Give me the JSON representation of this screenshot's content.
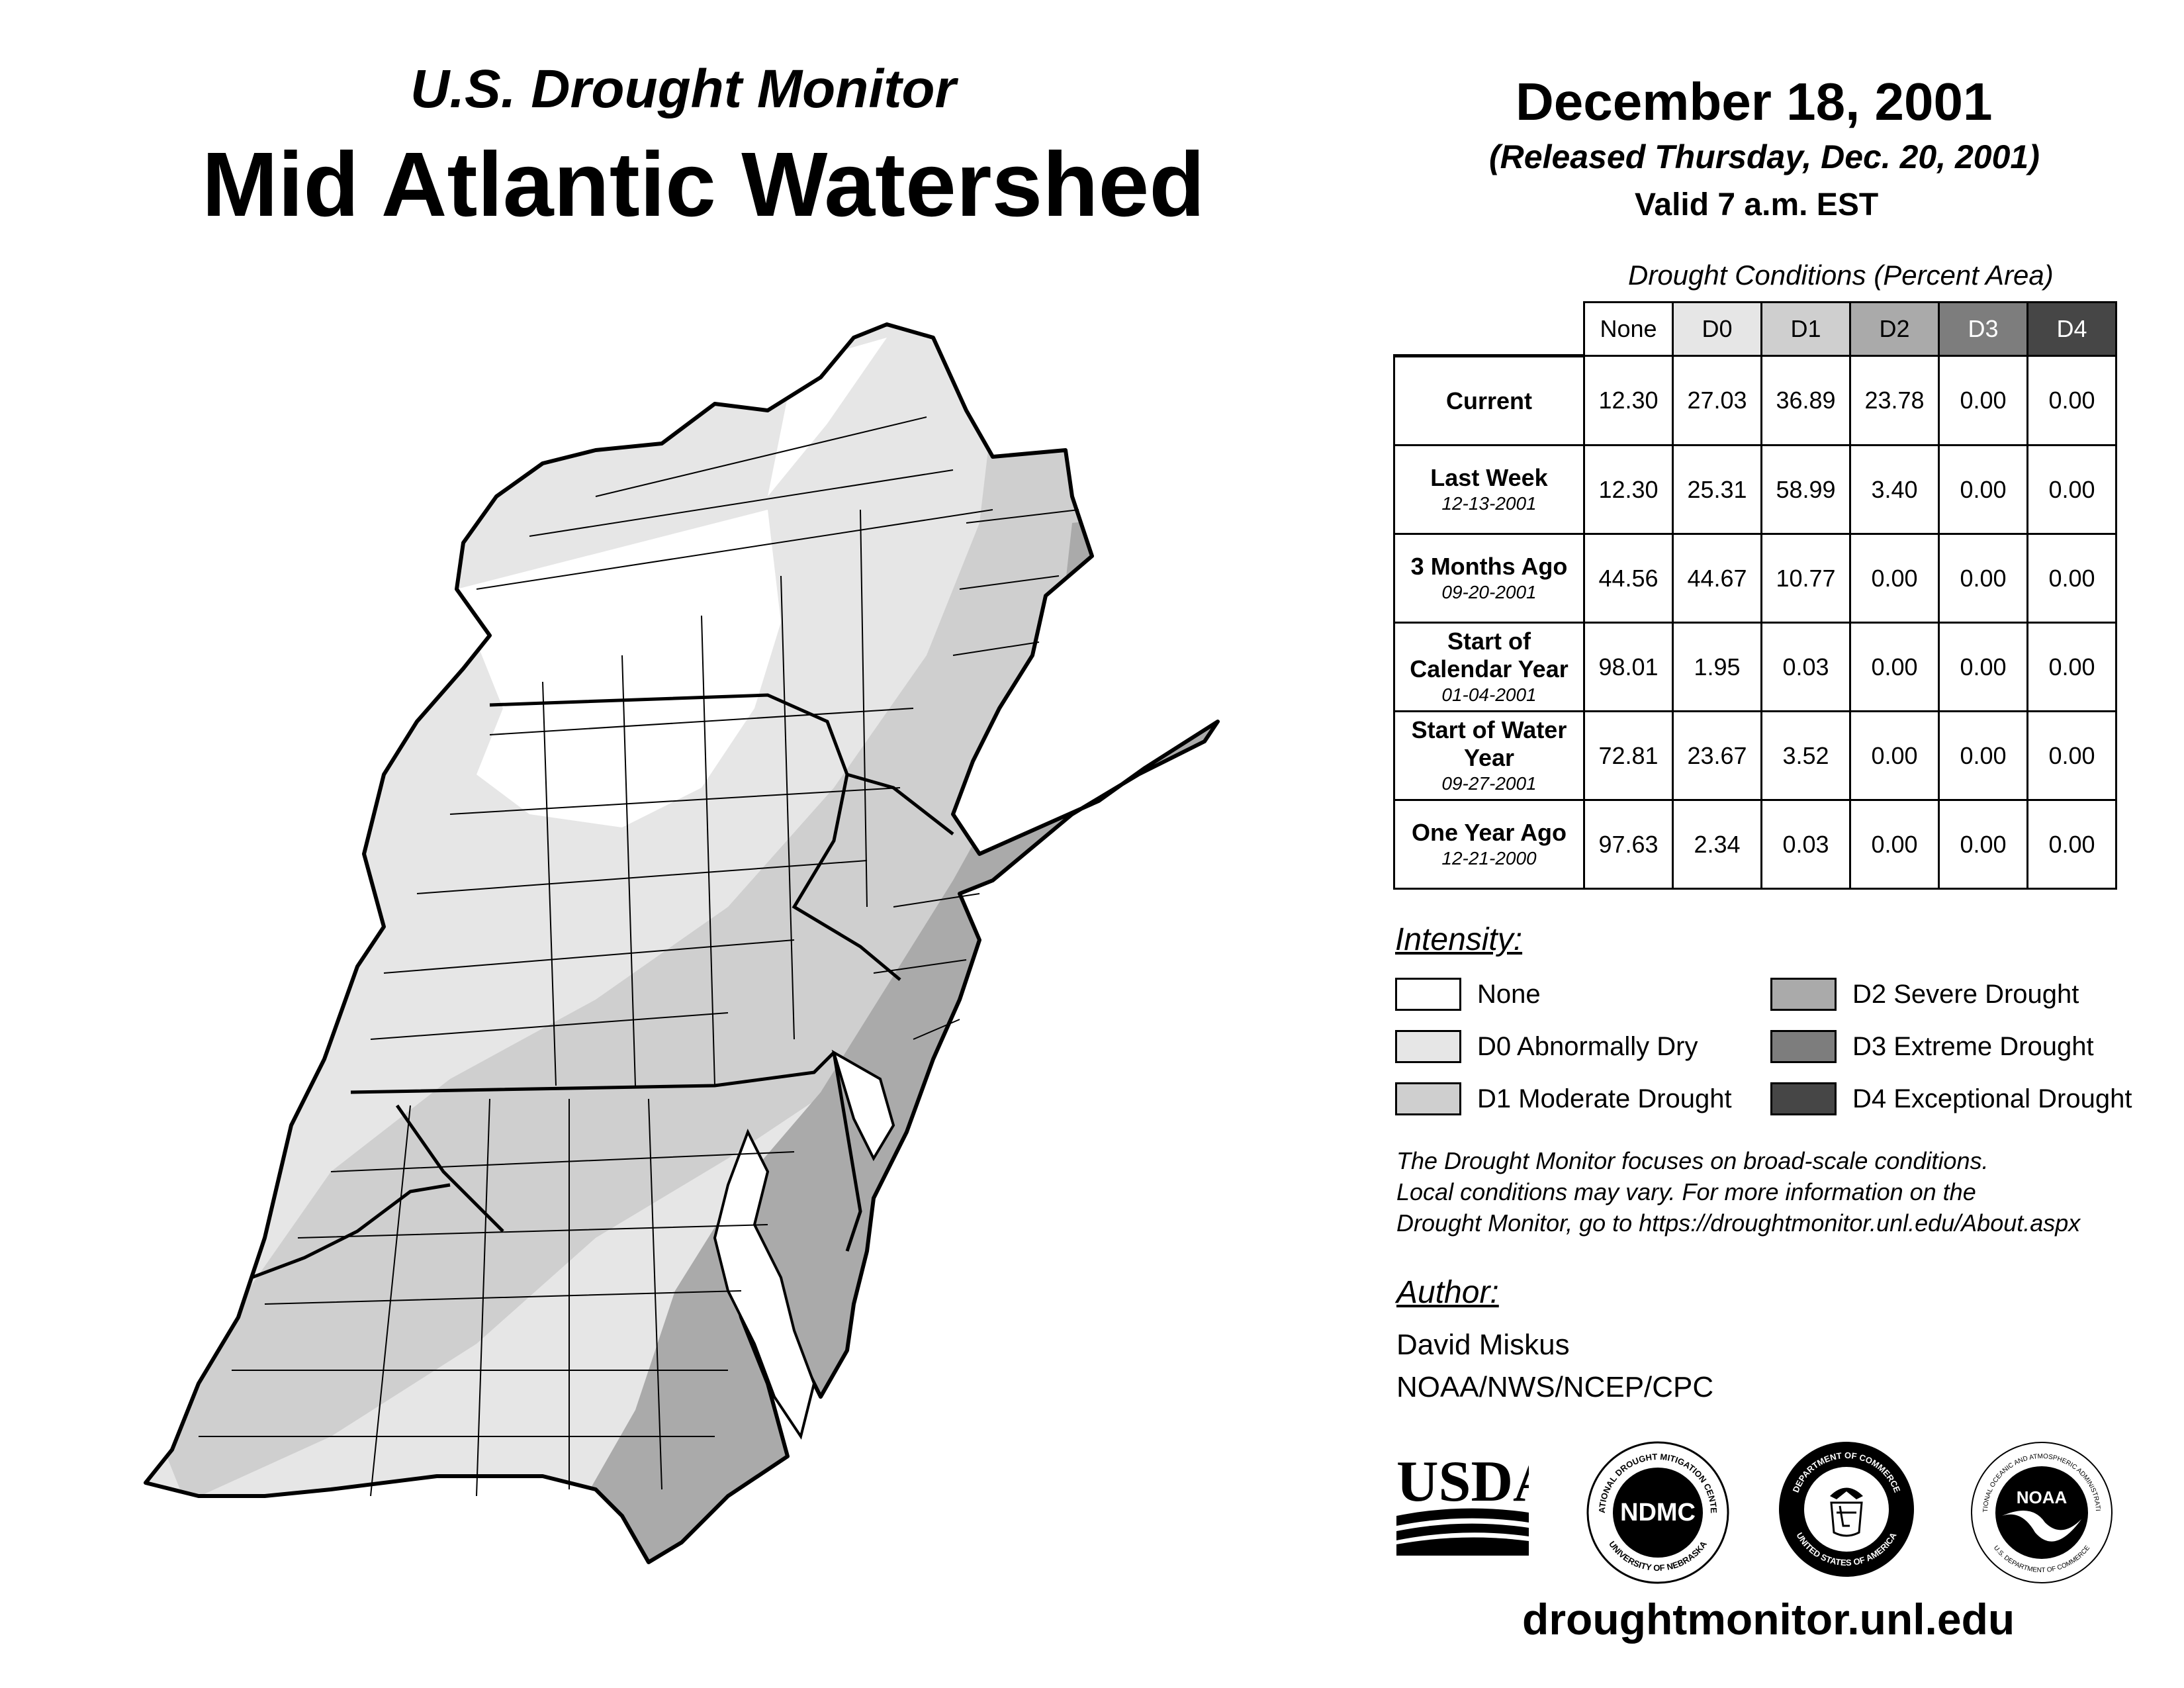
{
  "header": {
    "subtitle": "U.S. Drought Monitor",
    "title": "Mid Atlantic Watershed",
    "date": "December 18, 2001",
    "released": "(Released Thursday, Dec. 20, 2001)",
    "valid": "Valid 7 a.m. EST"
  },
  "table": {
    "caption": "Drought Conditions (Percent Area)",
    "columns": [
      {
        "label": "None",
        "color": "#ffffff"
      },
      {
        "label": "D0",
        "color": "#e6e6e6"
      },
      {
        "label": "D1",
        "color": "#cfcfcf"
      },
      {
        "label": "D2",
        "color": "#aaaaaa"
      },
      {
        "label": "D3",
        "color": "#7d7d7d"
      },
      {
        "label": "D4",
        "color": "#464646"
      }
    ],
    "rows": [
      {
        "label": "Current",
        "date": "",
        "values": [
          "12.30",
          "27.03",
          "36.89",
          "23.78",
          "0.00",
          "0.00"
        ]
      },
      {
        "label": "Last Week",
        "date": "12-13-2001",
        "values": [
          "12.30",
          "25.31",
          "58.99",
          "3.40",
          "0.00",
          "0.00"
        ]
      },
      {
        "label": "3 Months Ago",
        "date": "09-20-2001",
        "values": [
          "44.56",
          "44.67",
          "10.77",
          "0.00",
          "0.00",
          "0.00"
        ]
      },
      {
        "label": "Start of Calendar Year",
        "date": "01-04-2001",
        "values": [
          "98.01",
          "1.95",
          "0.03",
          "0.00",
          "0.00",
          "0.00"
        ]
      },
      {
        "label": "Start of Water Year",
        "date": "09-27-2001",
        "values": [
          "72.81",
          "23.67",
          "3.52",
          "0.00",
          "0.00",
          "0.00"
        ]
      },
      {
        "label": "One Year Ago",
        "date": "12-21-2000",
        "values": [
          "97.63",
          "2.34",
          "0.03",
          "0.00",
          "0.00",
          "0.00"
        ]
      }
    ]
  },
  "legend": {
    "heading": "Intensity:",
    "items": [
      {
        "label": "None",
        "color": "#ffffff"
      },
      {
        "label": "D0 Abnormally Dry",
        "color": "#e6e6e6"
      },
      {
        "label": "D1 Moderate Drought",
        "color": "#cfcfcf"
      },
      {
        "label": "D2 Severe Drought",
        "color": "#aaaaaa"
      },
      {
        "label": "D3 Extreme Drought",
        "color": "#7d7d7d"
      },
      {
        "label": "D4 Exceptional Drought",
        "color": "#464646"
      }
    ]
  },
  "note": {
    "line1": "The Drought Monitor focuses on broad-scale conditions.",
    "line2": "Local conditions may vary. For more information on the",
    "line3": "Drought Monitor, go to https://droughtmonitor.unl.edu/About.aspx"
  },
  "author": {
    "heading": "Author:",
    "name": "David Miskus",
    "org": "NOAA/NWS/NCEP/CPC"
  },
  "logos": {
    "usda": "USDA",
    "ndmc": "NDMC",
    "ndmc_ring_top": "NATIONAL DROUGHT MITIGATION CENTER",
    "ndmc_ring_bottom": "UNIVERSITY OF NEBRASKA",
    "doc_ring_top": "DEPARTMENT OF COMMERCE",
    "doc_ring_bottom": "UNITED STATES OF AMERICA",
    "noaa": "NOAA",
    "noaa_ring_top": "NATIONAL OCEANIC AND ATMOSPHERIC ADMINISTRATION",
    "noaa_ring_bottom": "U.S. DEPARTMENT OF COMMERCE"
  },
  "url": "droughtmonitor.unl.edu"
}
